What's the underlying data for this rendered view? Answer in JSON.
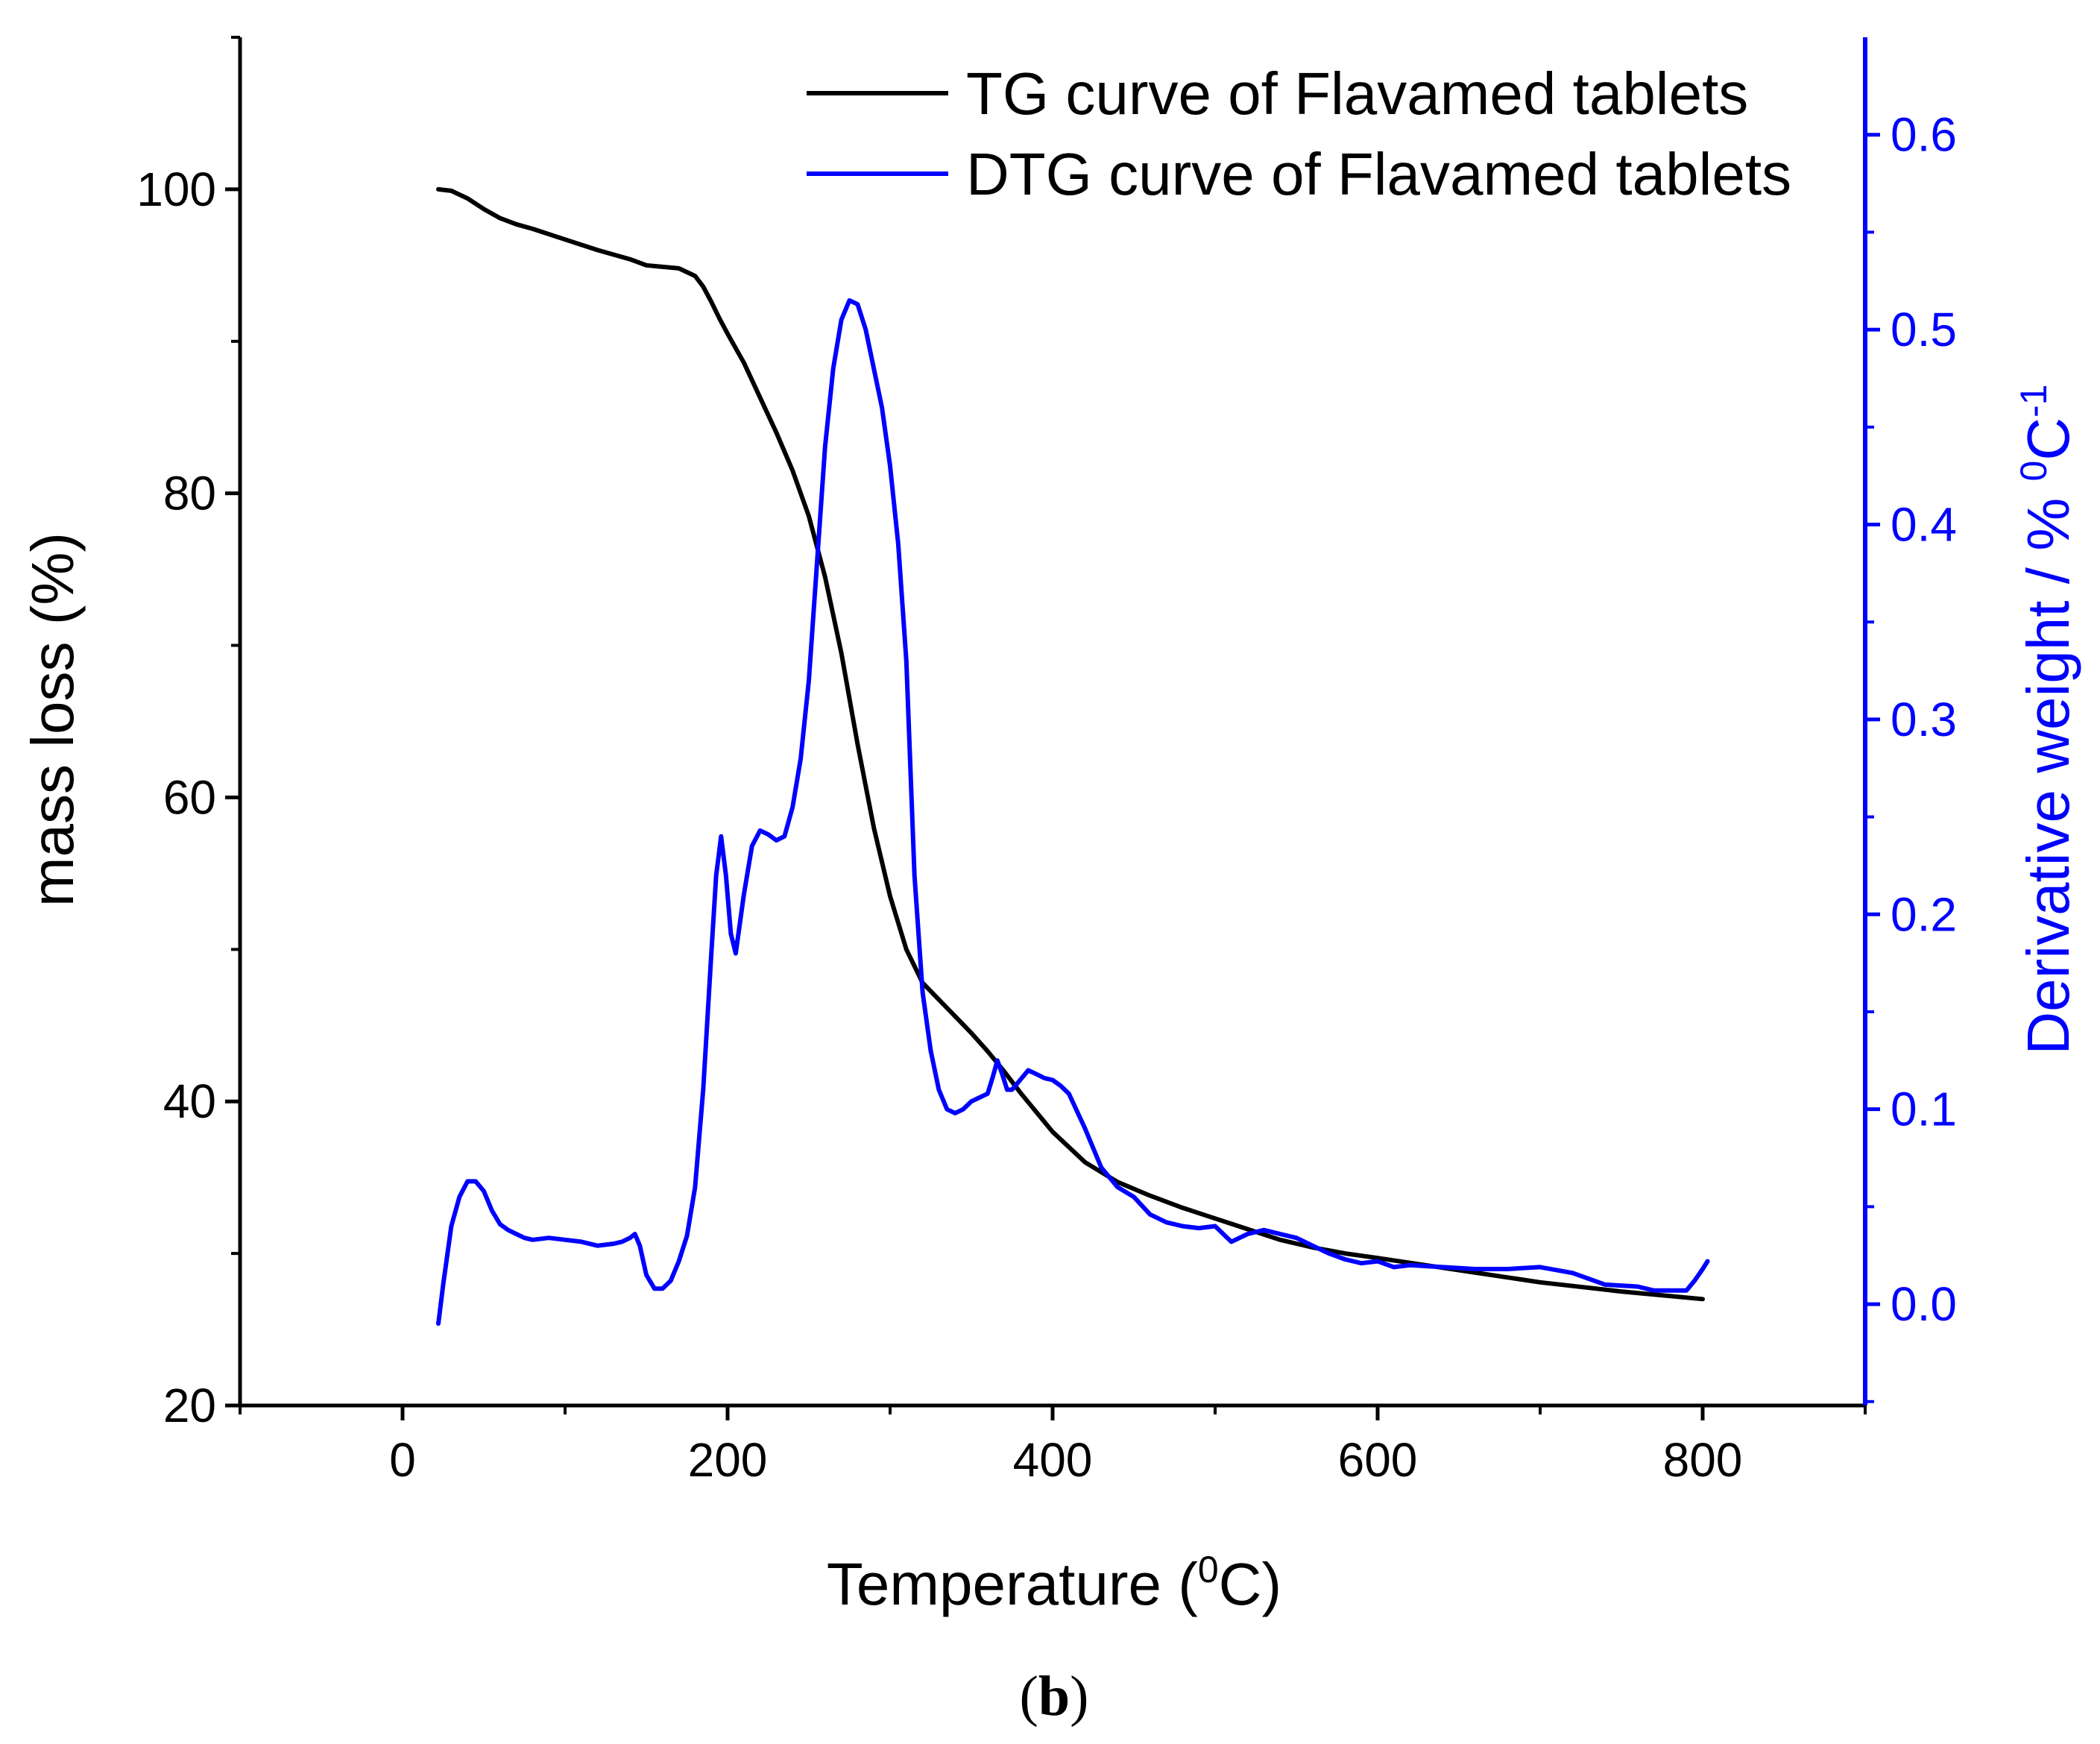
{
  "chart_data": {
    "type": "line",
    "xlabel": {
      "prefix": "Temperature (",
      "sup": "0",
      "suffix": "C)"
    },
    "ylabel_left": "mass loss (%)",
    "ylabel_right": {
      "prefix": "Derivative weight / % ",
      "sup1": "0",
      "mid": "C",
      "sup2": "-1"
    },
    "xlim": [
      -100,
      900
    ],
    "ylim_left": [
      20,
      110
    ],
    "ylim_right": [
      -0.052,
      0.65
    ],
    "x_ticks": [
      0,
      200,
      400,
      600,
      800
    ],
    "x_minor_ticks": [
      -100,
      100,
      300,
      500,
      700,
      900
    ],
    "y_left_ticks": [
      20,
      40,
      60,
      80,
      100
    ],
    "y_left_minor_ticks": [
      30,
      50,
      70,
      90,
      110
    ],
    "y_right_ticks": [
      0.0,
      0.1,
      0.2,
      0.3,
      0.4,
      0.5,
      0.6
    ],
    "y_right_minor_ticks": [
      -0.05,
      0.05,
      0.15,
      0.25,
      0.35,
      0.45,
      0.55
    ],
    "y_right_tick_labels": [
      "0.0",
      "0.1",
      "0.2",
      "0.3",
      "0.4",
      "0.5",
      "0.6"
    ],
    "legend_position": "top-right",
    "caption": {
      "open": "(",
      "bold": "b",
      "close": ")"
    },
    "colors": {
      "tg": "#000000",
      "dtg": "#0000ff",
      "axis": "#000000",
      "right_axis": "#0000ff"
    },
    "series": [
      {
        "name": "TG curve of Flavamed tablets",
        "axis": "left",
        "color": "#000000",
        "x": [
          22,
          30,
          40,
          50,
          60,
          70,
          80,
          100,
          120,
          140,
          150,
          160,
          170,
          180,
          185,
          190,
          195,
          200,
          210,
          220,
          230,
          240,
          250,
          260,
          270,
          280,
          290,
          300,
          310,
          320,
          330,
          340,
          350,
          360,
          370,
          380,
          390,
          400,
          420,
          440,
          460,
          480,
          500,
          520,
          540,
          560,
          580,
          600,
          650,
          700,
          750,
          800
        ],
        "y": [
          100.0,
          99.9,
          99.4,
          98.7,
          98.1,
          97.7,
          97.4,
          96.7,
          96.0,
          95.4,
          95.0,
          94.9,
          94.8,
          94.3,
          93.6,
          92.6,
          91.5,
          90.5,
          88.6,
          86.3,
          84.0,
          81.5,
          78.5,
          74.5,
          69.5,
          63.5,
          58.0,
          53.5,
          50.0,
          47.8,
          46.7,
          45.6,
          44.5,
          43.3,
          42.0,
          40.6,
          39.3,
          38.0,
          36.0,
          34.7,
          33.8,
          33.0,
          32.3,
          31.6,
          30.9,
          30.4,
          30.0,
          29.7,
          28.9,
          28.1,
          27.5,
          27.0
        ]
      },
      {
        "name": "DTG curve of Flavamed tablets",
        "axis": "right",
        "color": "#0000ff",
        "x": [
          22,
          25,
          30,
          35,
          40,
          45,
          50,
          55,
          60,
          65,
          70,
          75,
          80,
          90,
          100,
          110,
          120,
          130,
          135,
          140,
          143,
          146,
          150,
          155,
          160,
          165,
          170,
          175,
          180,
          185,
          190,
          193,
          196,
          199,
          202,
          205,
          210,
          215,
          220,
          225,
          230,
          235,
          240,
          245,
          250,
          255,
          260,
          265,
          270,
          275,
          280,
          285,
          290,
          295,
          300,
          305,
          310,
          315,
          320,
          325,
          330,
          335,
          340,
          345,
          350,
          355,
          360,
          363,
          366,
          369,
          372,
          375,
          380,
          385,
          390,
          395,
          400,
          405,
          410,
          420,
          430,
          440,
          450,
          460,
          470,
          480,
          490,
          500,
          505,
          510,
          520,
          530,
          540,
          550,
          560,
          570,
          580,
          590,
          600,
          610,
          620,
          640,
          660,
          680,
          700,
          720,
          740,
          760,
          770,
          780,
          790,
          795,
          800,
          803
        ],
        "y": [
          -0.01,
          0.01,
          0.04,
          0.055,
          0.063,
          0.063,
          0.058,
          0.048,
          0.041,
          0.038,
          0.036,
          0.034,
          0.033,
          0.034,
          0.033,
          0.032,
          0.03,
          0.031,
          0.032,
          0.034,
          0.036,
          0.03,
          0.015,
          0.008,
          0.008,
          0.012,
          0.022,
          0.035,
          0.06,
          0.11,
          0.18,
          0.22,
          0.24,
          0.22,
          0.19,
          0.18,
          0.21,
          0.235,
          0.243,
          0.241,
          0.238,
          0.24,
          0.255,
          0.28,
          0.32,
          0.38,
          0.44,
          0.48,
          0.505,
          0.515,
          0.513,
          0.5,
          0.48,
          0.46,
          0.43,
          0.39,
          0.33,
          0.22,
          0.16,
          0.13,
          0.11,
          0.1,
          0.098,
          0.1,
          0.104,
          0.106,
          0.108,
          0.116,
          0.125,
          0.118,
          0.11,
          0.11,
          0.115,
          0.12,
          0.118,
          0.116,
          0.115,
          0.112,
          0.108,
          0.09,
          0.07,
          0.06,
          0.055,
          0.046,
          0.042,
          0.04,
          0.039,
          0.04,
          0.036,
          0.032,
          0.036,
          0.038,
          0.036,
          0.034,
          0.03,
          0.026,
          0.023,
          0.021,
          0.022,
          0.019,
          0.02,
          0.019,
          0.018,
          0.018,
          0.019,
          0.016,
          0.01,
          0.009,
          0.007,
          0.007,
          0.007,
          0.012,
          0.018,
          0.022
        ]
      }
    ]
  }
}
